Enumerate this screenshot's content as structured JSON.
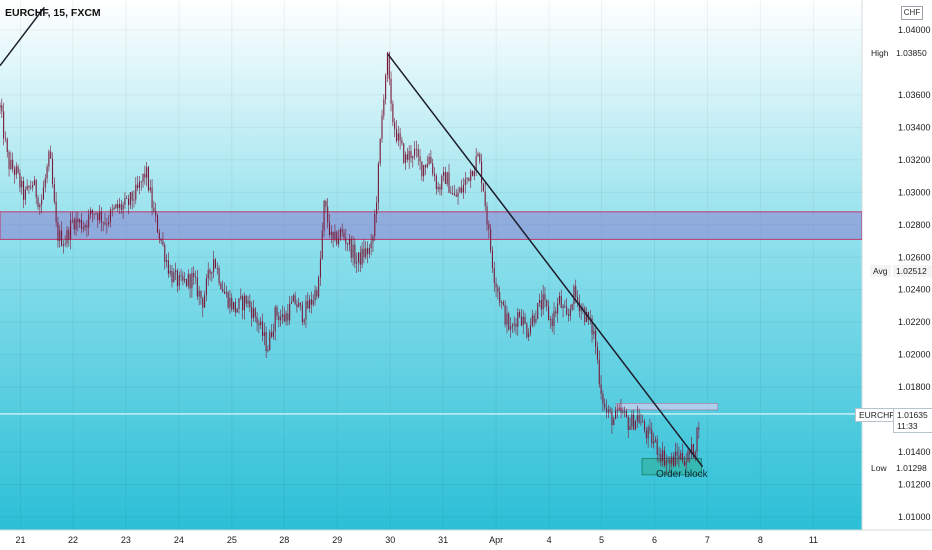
{
  "header": {
    "symbol_title": "EURCHF, 15, FXCM",
    "currency": "CHF"
  },
  "colors": {
    "background_top": "#ffffff",
    "background_bottom": "#2bbfd6",
    "candles": "#7a1a3a",
    "zone_fill": "#8a7fd0",
    "zone_border": "#c0366a",
    "trendline": "#1c1c2b",
    "order_block_fill": "#33b3a3",
    "current_price_line": "#ffffff"
  },
  "price_axis": {
    "ticks": [
      "1.04000",
      "1.03600",
      "1.03400",
      "1.03200",
      "1.03000",
      "1.02800",
      "1.02600",
      "1.02400",
      "1.02200",
      "1.02000",
      "1.01800",
      "1.01400",
      "1.01200",
      "1.01000"
    ],
    "tick_values": [
      1.04,
      1.036,
      1.034,
      1.032,
      1.03,
      1.028,
      1.026,
      1.024,
      1.022,
      1.02,
      1.018,
      1.014,
      1.012,
      1.01
    ]
  },
  "time_axis": {
    "labels": [
      "21",
      "22",
      "23",
      "24",
      "25",
      "28",
      "29",
      "30",
      "31",
      "Apr",
      "4",
      "5",
      "6",
      "7",
      "8",
      "11"
    ]
  },
  "price_tags": {
    "high": {
      "label": "High",
      "value": "1.03850"
    },
    "avg": {
      "label": "Avg",
      "value": "1.02512"
    },
    "current": {
      "label": "EURCHF",
      "value": "1.01635",
      "countdown": "11:33"
    },
    "low": {
      "label": "Low",
      "value": "1.01298"
    }
  },
  "annotations": {
    "order_block": "Order block"
  },
  "chart_data": {
    "type": "candlestick",
    "title": "EURCHF, 15, FXCM",
    "x_unit": "trading day",
    "y_unit": "CHF",
    "ylim": [
      1.0095,
      1.0414
    ],
    "xlim": [
      0.0,
      15.95
    ],
    "day_labels": [
      "21",
      "22",
      "23",
      "24",
      "25",
      "28",
      "29",
      "30",
      "31",
      "Apr",
      "4",
      "5",
      "6",
      "7",
      "8",
      "11"
    ],
    "day_index": [
      0.38,
      1.35,
      2.33,
      3.31,
      4.29,
      5.26,
      6.24,
      7.22,
      8.2,
      9.18,
      10.16,
      11.13,
      12.11,
      13.09,
      14.07,
      15.05
    ],
    "price_path": [
      [
        0.0,
        1.0352
      ],
      [
        0.15,
        1.0318
      ],
      [
        0.3,
        1.0312
      ],
      [
        0.45,
        1.0297
      ],
      [
        0.6,
        1.0306
      ],
      [
        0.75,
        1.0292
      ],
      [
        0.92,
        1.0323
      ],
      [
        1.05,
        1.0274
      ],
      [
        1.2,
        1.027
      ],
      [
        1.35,
        1.0283
      ],
      [
        1.55,
        1.028
      ],
      [
        1.75,
        1.0289
      ],
      [
        1.95,
        1.0282
      ],
      [
        2.15,
        1.029
      ],
      [
        2.35,
        1.0292
      ],
      [
        2.55,
        1.0301
      ],
      [
        2.7,
        1.0313
      ],
      [
        2.85,
        1.0286
      ],
      [
        3.0,
        1.0268
      ],
      [
        3.15,
        1.025
      ],
      [
        3.35,
        1.0243
      ],
      [
        3.55,
        1.0247
      ],
      [
        3.75,
        1.0233
      ],
      [
        3.95,
        1.026
      ],
      [
        4.15,
        1.0238
      ],
      [
        4.35,
        1.0228
      ],
      [
        4.55,
        1.0234
      ],
      [
        4.75,
        1.0222
      ],
      [
        4.95,
        1.0204
      ],
      [
        5.1,
        1.0226
      ],
      [
        5.25,
        1.0222
      ],
      [
        5.45,
        1.0233
      ],
      [
        5.6,
        1.0225
      ],
      [
        5.75,
        1.0232
      ],
      [
        5.9,
        1.0244
      ],
      [
        6.0,
        1.0293
      ],
      [
        6.15,
        1.0268
      ],
      [
        6.3,
        1.0275
      ],
      [
        6.45,
        1.0269
      ],
      [
        6.6,
        1.0257
      ],
      [
        6.75,
        1.0263
      ],
      [
        6.88,
        1.0265
      ],
      [
        6.98,
        1.0302
      ],
      [
        7.05,
        1.0338
      ],
      [
        7.12,
        1.037
      ],
      [
        7.18,
        1.0384
      ],
      [
        7.22,
        1.0352
      ],
      [
        7.35,
        1.0334
      ],
      [
        7.5,
        1.032
      ],
      [
        7.65,
        1.0326
      ],
      [
        7.8,
        1.0315
      ],
      [
        7.95,
        1.0322
      ],
      [
        8.1,
        1.0302
      ],
      [
        8.25,
        1.031
      ],
      [
        8.4,
        1.0296
      ],
      [
        8.55,
        1.0302
      ],
      [
        8.7,
        1.0313
      ],
      [
        8.85,
        1.0322
      ],
      [
        8.95,
        1.0302
      ],
      [
        9.05,
        1.0272
      ],
      [
        9.15,
        1.0248
      ],
      [
        9.3,
        1.0228
      ],
      [
        9.45,
        1.0214
      ],
      [
        9.6,
        1.0227
      ],
      [
        9.75,
        1.0215
      ],
      [
        9.9,
        1.0226
      ],
      [
        10.05,
        1.0232
      ],
      [
        10.2,
        1.022
      ],
      [
        10.35,
        1.0233
      ],
      [
        10.5,
        1.022
      ],
      [
        10.6,
        1.0238
      ],
      [
        10.75,
        1.023
      ],
      [
        10.88,
        1.0221
      ],
      [
        11.0,
        1.0212
      ],
      [
        11.1,
        1.0183
      ],
      [
        11.2,
        1.0165
      ],
      [
        11.35,
        1.016
      ],
      [
        11.5,
        1.0164
      ],
      [
        11.65,
        1.0157
      ],
      [
        11.8,
        1.0162
      ],
      [
        11.95,
        1.0152
      ],
      [
        12.1,
        1.0146
      ],
      [
        12.25,
        1.0138
      ],
      [
        12.4,
        1.0133
      ],
      [
        12.55,
        1.0138
      ],
      [
        12.7,
        1.0136
      ],
      [
        12.85,
        1.0142
      ],
      [
        12.95,
        1.0163
      ]
    ],
    "support_zone": {
      "from": 1.0271,
      "to": 1.0288
    },
    "trendlines": [
      {
        "from": [
          0.0,
          1.0378
        ],
        "to": [
          0.82,
          1.0414
        ]
      },
      {
        "from": [
          7.18,
          1.0385
        ],
        "to": [
          13.0,
          1.0131
        ]
      }
    ],
    "order_block": {
      "label": "Order block",
      "x_from": 11.88,
      "x_to": 12.98,
      "y_from": 1.0126,
      "y_to": 1.0136
    },
    "small_zone": {
      "x_from": 11.4,
      "x_to": 13.28,
      "y_from": 1.0166,
      "y_to": 1.017
    },
    "current_price": 1.01635,
    "high": 1.0385,
    "avg": 1.02512,
    "low": 1.01298
  }
}
